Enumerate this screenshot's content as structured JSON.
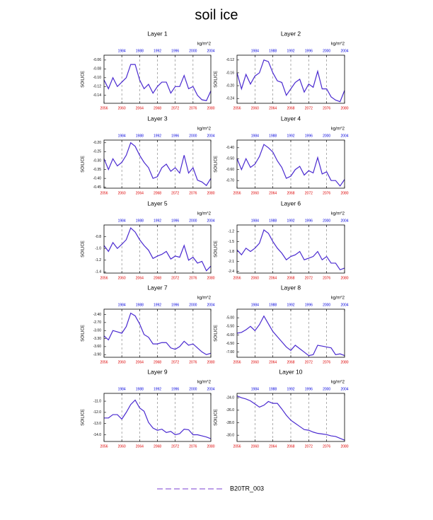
{
  "title": "soil ice",
  "legend": {
    "label": "B20TR_003",
    "color": "#7a3fd0",
    "style": "dashed"
  },
  "chart_data": [
    {
      "type": "line",
      "title": "Layer 1",
      "unit": "kg/m^2",
      "ylabel": "SOILICE",
      "x": [
        2056,
        2057,
        2058,
        2059,
        2060,
        2061,
        2062,
        2063,
        2064,
        2065,
        2066,
        2067,
        2068,
        2069,
        2070,
        2071,
        2072,
        2073,
        2074,
        2075,
        2076,
        2077,
        2078,
        2079,
        2080
      ],
      "xlim": [
        2056,
        2080
      ],
      "xticks": [
        2056,
        2060,
        2064,
        2068,
        2072,
        2076,
        2080
      ],
      "x2lim": [
        1980,
        2004
      ],
      "x2ticks": [
        1984,
        1988,
        1992,
        1996,
        2000,
        2004
      ],
      "grid": true,
      "ylim": [
        -0.158,
        -0.049
      ],
      "yticks": [
        -0.06,
        -0.08,
        {
          "value": -0.1,
          "label": "-0.10"
        },
        -0.12,
        -0.14
      ],
      "series": [
        {
          "color": "#4a2ad0",
          "values": [
            -0.105,
            -0.125,
            -0.1,
            -0.12,
            -0.11,
            -0.1,
            -0.07,
            -0.07,
            -0.105,
            -0.125,
            -0.115,
            -0.135,
            -0.12,
            -0.11,
            -0.11,
            -0.135,
            -0.12,
            -0.12,
            -0.095,
            -0.125,
            -0.12,
            -0.14,
            -0.15,
            -0.152,
            -0.13
          ]
        }
      ]
    },
    {
      "type": "line",
      "title": "Layer 2",
      "unit": "kg/m^2",
      "ylabel": "SOILICE",
      "x": [
        2056,
        2057,
        2058,
        2059,
        2060,
        2061,
        2062,
        2063,
        2064,
        2065,
        2066,
        2067,
        2068,
        2069,
        2070,
        2071,
        2072,
        2073,
        2074,
        2075,
        2076,
        2077,
        2078,
        2079,
        2080
      ],
      "xlim": [
        2056,
        2080
      ],
      "xticks": [
        2056,
        2060,
        2064,
        2068,
        2072,
        2076,
        2080
      ],
      "x2lim": [
        1980,
        2004
      ],
      "x2ticks": [
        1984,
        1988,
        1992,
        1996,
        2000,
        2004
      ],
      "grid": true,
      "ylim": [
        -0.255,
        -0.105
      ],
      "yticks": [
        -0.12,
        -0.16,
        {
          "value": -0.2,
          "label": "-0.20"
        },
        -0.24
      ],
      "series": [
        {
          "color": "#4a2ad0",
          "values": [
            -0.16,
            -0.21,
            -0.165,
            -0.195,
            -0.17,
            -0.16,
            -0.12,
            -0.125,
            -0.16,
            -0.185,
            -0.19,
            -0.23,
            -0.21,
            -0.19,
            -0.18,
            -0.22,
            -0.195,
            -0.205,
            -0.155,
            -0.21,
            -0.21,
            -0.235,
            -0.245,
            -0.25,
            -0.215
          ]
        }
      ]
    },
    {
      "type": "line",
      "title": "Layer 3",
      "unit": "kg/m^2",
      "ylabel": "SOILICE",
      "x": [
        2056,
        2057,
        2058,
        2059,
        2060,
        2061,
        2062,
        2063,
        2064,
        2065,
        2066,
        2067,
        2068,
        2069,
        2070,
        2071,
        2072,
        2073,
        2074,
        2075,
        2076,
        2077,
        2078,
        2079,
        2080
      ],
      "xlim": [
        2056,
        2080
      ],
      "xticks": [
        2056,
        2060,
        2064,
        2068,
        2072,
        2076,
        2080
      ],
      "x2lim": [
        1980,
        2004
      ],
      "x2ticks": [
        1984,
        1988,
        1992,
        1996,
        2000,
        2004
      ],
      "grid": true,
      "ylim": [
        -0.455,
        -0.185
      ],
      "yticks": [
        {
          "value": -0.2,
          "label": "-0.20"
        },
        -0.25,
        {
          "value": -0.3,
          "label": "-0.30"
        },
        -0.35,
        {
          "value": -0.4,
          "label": "-0.40"
        },
        -0.45
      ],
      "series": [
        {
          "color": "#4a2ad0",
          "values": [
            -0.29,
            -0.35,
            -0.29,
            -0.33,
            -0.31,
            -0.27,
            -0.2,
            -0.22,
            -0.27,
            -0.31,
            -0.34,
            -0.4,
            -0.39,
            -0.34,
            -0.32,
            -0.36,
            -0.34,
            -0.37,
            -0.27,
            -0.37,
            -0.34,
            -0.41,
            -0.42,
            -0.44,
            -0.4
          ]
        }
      ]
    },
    {
      "type": "line",
      "title": "Layer 4",
      "unit": "kg/m^2",
      "ylabel": "SOILICE",
      "x": [
        2056,
        2057,
        2058,
        2059,
        2060,
        2061,
        2062,
        2063,
        2064,
        2065,
        2066,
        2067,
        2068,
        2069,
        2070,
        2071,
        2072,
        2073,
        2074,
        2075,
        2076,
        2077,
        2078,
        2079,
        2080
      ],
      "xlim": [
        2056,
        2080
      ],
      "xticks": [
        2056,
        2060,
        2064,
        2068,
        2072,
        2076,
        2080
      ],
      "x2lim": [
        1980,
        2004
      ],
      "x2ticks": [
        1984,
        1988,
        1992,
        1996,
        2000,
        2004
      ],
      "grid": true,
      "ylim": [
        -0.77,
        -0.33
      ],
      "yticks": [
        {
          "value": -0.4,
          "label": "-0.40"
        },
        {
          "value": -0.5,
          "label": "-0.50"
        },
        {
          "value": -0.6,
          "label": "-0.60"
        },
        {
          "value": -0.7,
          "label": "-0.70"
        }
      ],
      "series": [
        {
          "color": "#4a2ad0",
          "values": [
            -0.5,
            -0.6,
            -0.5,
            -0.58,
            -0.55,
            -0.48,
            -0.37,
            -0.4,
            -0.44,
            -0.52,
            -0.58,
            -0.68,
            -0.66,
            -0.6,
            -0.57,
            -0.65,
            -0.61,
            -0.63,
            -0.49,
            -0.64,
            -0.62,
            -0.7,
            -0.7,
            -0.75,
            -0.69
          ]
        }
      ]
    },
    {
      "type": "line",
      "title": "Layer 5",
      "unit": "kg/m^2",
      "ylabel": "SOILICE",
      "x": [
        2056,
        2057,
        2058,
        2059,
        2060,
        2061,
        2062,
        2063,
        2064,
        2065,
        2066,
        2067,
        2068,
        2069,
        2070,
        2071,
        2072,
        2073,
        2074,
        2075,
        2076,
        2077,
        2078,
        2079,
        2080
      ],
      "xlim": [
        2056,
        2080
      ],
      "xticks": [
        2056,
        2060,
        2064,
        2068,
        2072,
        2076,
        2080
      ],
      "x2lim": [
        1980,
        2004
      ],
      "x2ticks": [
        1984,
        1988,
        1992,
        1996,
        2000,
        2004
      ],
      "grid": true,
      "ylim": [
        -1.42,
        -0.6
      ],
      "yticks": [
        -0.8,
        {
          "value": -1,
          "label": "-1.0"
        },
        -1.2,
        -1.4
      ],
      "series": [
        {
          "color": "#4a2ad0",
          "values": [
            -0.95,
            -1.05,
            -0.9,
            -1.0,
            -0.93,
            -0.85,
            -0.65,
            -0.72,
            -0.85,
            -0.95,
            -1.03,
            -1.17,
            -1.13,
            -1.1,
            -1.05,
            -1.18,
            -1.13,
            -1.15,
            -0.95,
            -1.2,
            -1.15,
            -1.25,
            -1.22,
            -1.38,
            -1.3
          ]
        }
      ]
    },
    {
      "type": "line",
      "title": "Layer 6",
      "unit": "kg/m^2",
      "ylabel": "SOILICE",
      "x": [
        2056,
        2057,
        2058,
        2059,
        2060,
        2061,
        2062,
        2063,
        2064,
        2065,
        2066,
        2067,
        2068,
        2069,
        2070,
        2071,
        2072,
        2073,
        2074,
        2075,
        2076,
        2077,
        2078,
        2079,
        2080
      ],
      "xlim": [
        2056,
        2080
      ],
      "xticks": [
        2056,
        2060,
        2064,
        2068,
        2072,
        2076,
        2080
      ],
      "x2lim": [
        1980,
        2004
      ],
      "x2ticks": [
        1984,
        1988,
        1992,
        1996,
        2000,
        2004
      ],
      "grid": true,
      "ylim": [
        -2.45,
        -1.0
      ],
      "yticks": [
        -1.2,
        -1.5,
        -1.8,
        -2.1,
        -2.4
      ],
      "series": [
        {
          "color": "#4a2ad0",
          "values": [
            -1.75,
            -1.9,
            -1.7,
            -1.8,
            -1.7,
            -1.55,
            -1.15,
            -1.25,
            -1.5,
            -1.7,
            -1.85,
            -2.05,
            -1.95,
            -1.9,
            -1.8,
            -2.05,
            -2.0,
            -1.95,
            -1.8,
            -2.05,
            -1.95,
            -2.15,
            -2.15,
            -2.35,
            -2.3
          ]
        }
      ]
    },
    {
      "type": "line",
      "title": "Layer 7",
      "unit": "kg/m^2",
      "ylabel": "SOILICE",
      "x": [
        2056,
        2057,
        2058,
        2059,
        2060,
        2061,
        2062,
        2063,
        2064,
        2065,
        2066,
        2067,
        2068,
        2069,
        2070,
        2071,
        2072,
        2073,
        2074,
        2075,
        2076,
        2077,
        2078,
        2079,
        2080
      ],
      "xlim": [
        2056,
        2080
      ],
      "xticks": [
        2056,
        2060,
        2064,
        2068,
        2072,
        2076,
        2080
      ],
      "x2lim": [
        1980,
        2004
      ],
      "x2ticks": [
        1984,
        1988,
        1992,
        1996,
        2000,
        2004
      ],
      "grid": true,
      "ylim": [
        -4.0,
        -2.2
      ],
      "yticks": [
        {
          "value": -2.4,
          "label": "-2.40"
        },
        {
          "value": -2.7,
          "label": "-2.70"
        },
        {
          "value": -3,
          "label": "-3.00"
        },
        {
          "value": -3.3,
          "label": "-3.30"
        },
        {
          "value": -3.6,
          "label": "-3.60"
        },
        {
          "value": -3.9,
          "label": "-3.90"
        }
      ],
      "series": [
        {
          "color": "#4a2ad0",
          "values": [
            -3.2,
            -3.35,
            -3.0,
            -3.05,
            -3.1,
            -2.85,
            -2.35,
            -2.45,
            -2.75,
            -3.15,
            -3.25,
            -3.5,
            -3.5,
            -3.45,
            -3.45,
            -3.65,
            -3.7,
            -3.6,
            -3.4,
            -3.55,
            -3.5,
            -3.65,
            -3.8,
            -3.9,
            -3.85
          ]
        }
      ]
    },
    {
      "type": "line",
      "title": "Layer 8",
      "unit": "kg/m^2",
      "ylabel": "SOILICE",
      "x": [
        2056,
        2057,
        2058,
        2059,
        2060,
        2061,
        2062,
        2063,
        2064,
        2065,
        2066,
        2067,
        2068,
        2069,
        2070,
        2071,
        2072,
        2073,
        2074,
        2075,
        2076,
        2077,
        2078,
        2079,
        2080
      ],
      "xlim": [
        2056,
        2080
      ],
      "xticks": [
        2056,
        2060,
        2064,
        2068,
        2072,
        2076,
        2080
      ],
      "x2lim": [
        1980,
        2004
      ],
      "x2ticks": [
        1984,
        1988,
        1992,
        1996,
        2000,
        2004
      ],
      "grid": true,
      "ylim": [
        -7.3,
        -4.5
      ],
      "yticks": [
        {
          "value": -5,
          "label": "-5.00"
        },
        {
          "value": -5.5,
          "label": "-5.50"
        },
        {
          "value": -6,
          "label": "-6.00"
        },
        {
          "value": -6.5,
          "label": "-6.50"
        },
        {
          "value": -7,
          "label": "-7.00"
        }
      ],
      "series": [
        {
          "color": "#4a2ad0",
          "values": [
            -5.9,
            -5.85,
            -5.7,
            -5.5,
            -5.75,
            -5.4,
            -4.9,
            -5.35,
            -5.8,
            -6.1,
            -6.4,
            -6.7,
            -6.9,
            -6.6,
            -6.8,
            -7.0,
            -7.2,
            -7.15,
            -6.6,
            -6.65,
            -6.7,
            -6.75,
            -7.15,
            -7.1,
            -7.2
          ]
        }
      ]
    },
    {
      "type": "line",
      "title": "Layer 9",
      "unit": "kg/m^2",
      "ylabel": "SOILICE",
      "x": [
        2056,
        2057,
        2058,
        2059,
        2060,
        2061,
        2062,
        2063,
        2064,
        2065,
        2066,
        2067,
        2068,
        2069,
        2070,
        2071,
        2072,
        2073,
        2074,
        2075,
        2076,
        2077,
        2078,
        2079,
        2080
      ],
      "xlim": [
        2056,
        2080
      ],
      "xticks": [
        2056,
        2060,
        2064,
        2068,
        2072,
        2076,
        2080
      ],
      "x2lim": [
        1980,
        2004
      ],
      "x2ticks": [
        1984,
        1988,
        1992,
        1996,
        2000,
        2004
      ],
      "grid": true,
      "ylim": [
        -14.6,
        -10.3
      ],
      "yticks": [
        {
          "value": -11,
          "label": "-11.0"
        },
        {
          "value": -12,
          "label": "-12.0"
        },
        {
          "value": -13,
          "label": "-13.0"
        },
        {
          "value": -14,
          "label": "-14.0"
        }
      ],
      "series": [
        {
          "color": "#4a2ad0",
          "values": [
            -12.5,
            -12.5,
            -12.2,
            -12.2,
            -12.6,
            -12.0,
            -11.3,
            -10.9,
            -11.6,
            -11.9,
            -12.9,
            -13.4,
            -13.6,
            -13.5,
            -13.8,
            -13.7,
            -14.0,
            -13.9,
            -13.5,
            -13.55,
            -14.0,
            -14.0,
            -14.1,
            -14.2,
            -14.35
          ]
        }
      ]
    },
    {
      "type": "line",
      "title": "Layer 10",
      "unit": "kg/m^2",
      "ylabel": "SOILICE",
      "x": [
        2056,
        2057,
        2058,
        2059,
        2060,
        2061,
        2062,
        2063,
        2064,
        2065,
        2066,
        2067,
        2068,
        2069,
        2070,
        2071,
        2072,
        2073,
        2074,
        2075,
        2076,
        2077,
        2078,
        2079,
        2080
      ],
      "xlim": [
        2056,
        2080
      ],
      "xticks": [
        2056,
        2060,
        2064,
        2068,
        2072,
        2076,
        2080
      ],
      "x2lim": [
        1980,
        2004
      ],
      "x2ticks": [
        1984,
        1988,
        1992,
        1996,
        2000,
        2004
      ],
      "grid": true,
      "ylim": [
        -31.0,
        -23.3
      ],
      "yticks": [
        {
          "value": -24,
          "label": "-24.0"
        },
        {
          "value": -26,
          "label": "-26.0"
        },
        {
          "value": -28,
          "label": "-28.0"
        },
        {
          "value": -30,
          "label": "-30.0"
        }
      ],
      "series": [
        {
          "color": "#4a2ad0",
          "values": [
            -23.7,
            -24.0,
            -24.2,
            -24.5,
            -25.0,
            -25.5,
            -25.2,
            -24.6,
            -24.9,
            -24.9,
            -25.8,
            -26.8,
            -27.6,
            -28.1,
            -28.6,
            -29.1,
            -29.2,
            -29.5,
            -29.7,
            -29.8,
            -29.9,
            -30.1,
            -30.2,
            -30.5,
            -30.8
          ]
        }
      ]
    }
  ]
}
